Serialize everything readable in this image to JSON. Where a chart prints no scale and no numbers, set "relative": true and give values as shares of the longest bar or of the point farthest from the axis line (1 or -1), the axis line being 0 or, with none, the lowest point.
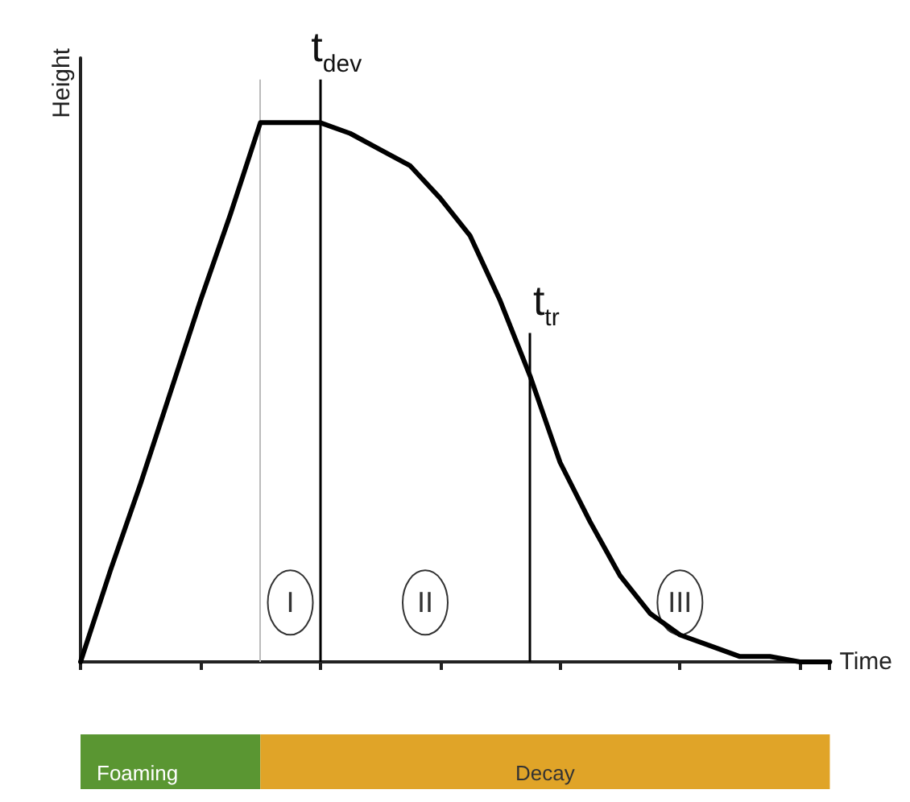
{
  "chart_data": {
    "type": "line",
    "relative": true,
    "xlabel": "Time",
    "ylabel": "Height",
    "categories": [
      null,
      null,
      null,
      null,
      null,
      null,
      null,
      null,
      null,
      null,
      null,
      null,
      null,
      null,
      null,
      null,
      null,
      null,
      null,
      null,
      null,
      null,
      null,
      null,
      null,
      null
    ],
    "series": [
      {
        "color": "#000000",
        "values": [
          0,
          0.17,
          0.33,
          0.5,
          0.67,
          0.83,
          1,
          1,
          1,
          0.98,
          0.95,
          0.92,
          0.86,
          0.79,
          0.67,
          0.53,
          0.37,
          0.26,
          0.16,
          0.09,
          0.05,
          0.03,
          0.01,
          0.01,
          0,
          0
        ]
      }
    ],
    "annotations": [
      "t$_{dev}$",
      "t$_{tr}$",
      "I",
      "II",
      "III",
      "Foaming",
      "Decay"
    ],
    "marker": "none",
    "line_style": "solid"
  }
}
